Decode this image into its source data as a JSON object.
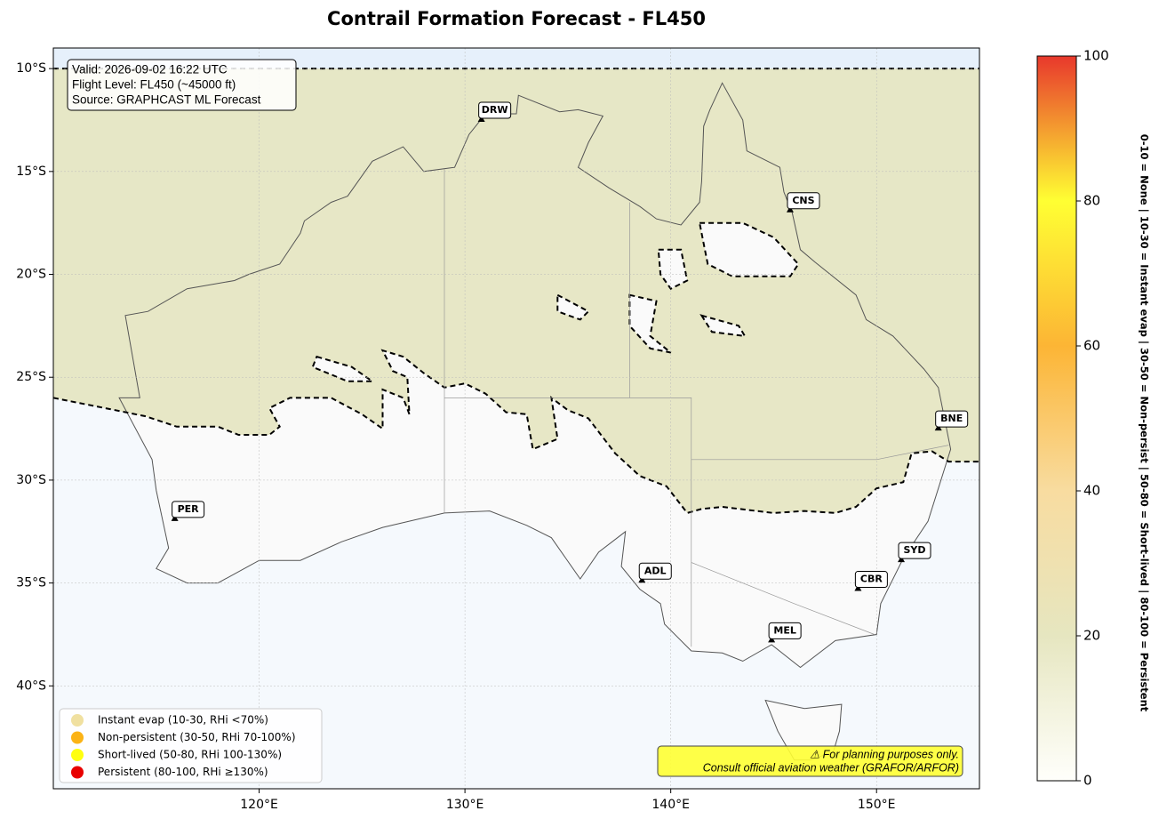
{
  "title": "Contrail Formation Forecast - FL450",
  "map": {
    "xlim": [
      110,
      155
    ],
    "ylim": [
      -45,
      -9
    ],
    "xticks": [
      {
        "value": 120,
        "label": "120°E"
      },
      {
        "value": 130,
        "label": "130°E"
      },
      {
        "value": 140,
        "label": "140°E"
      },
      {
        "value": 150,
        "label": "150°E"
      }
    ],
    "yticks": [
      {
        "value": -10,
        "label": "10°S"
      },
      {
        "value": -15,
        "label": "15°S"
      },
      {
        "value": -20,
        "label": "20°S"
      },
      {
        "value": -25,
        "label": "25°S"
      },
      {
        "value": -30,
        "label": "30°S"
      },
      {
        "value": -35,
        "label": "35°S"
      },
      {
        "value": -40,
        "label": "40°S"
      }
    ],
    "grid": true
  },
  "info_box": [
    "Valid: 2026-09-02 16:22 UTC",
    "Flight Level: FL450 (~45000 ft)",
    "Source: GRAPHCAST ML Forecast"
  ],
  "cities": [
    {
      "code": "DRW",
      "lon": 130.8,
      "lat": -12.5
    },
    {
      "code": "CNS",
      "lon": 145.8,
      "lat": -16.9
    },
    {
      "code": "BNE",
      "lon": 153.0,
      "lat": -27.5
    },
    {
      "code": "PER",
      "lon": 115.9,
      "lat": -31.9
    },
    {
      "code": "ADL",
      "lon": 138.6,
      "lat": -34.9
    },
    {
      "code": "SYD",
      "lon": 151.2,
      "lat": -33.9
    },
    {
      "code": "CBR",
      "lon": 149.1,
      "lat": -35.3
    },
    {
      "code": "MEL",
      "lon": 144.9,
      "lat": -37.8
    }
  ],
  "legend": [
    {
      "label": "Instant evap (10-30, RHi <70%)",
      "color": "#f0e0a0"
    },
    {
      "label": "Non-persistent (30-50, RHi 70-100%)",
      "color": "#fbb316"
    },
    {
      "label": "Short-lived (50-80, RHi 100-130%)",
      "color": "#ffff10"
    },
    {
      "label": "Persistent (80-100, RHi ≥130%)",
      "color": "#e80000"
    }
  ],
  "disclaimer": [
    "⚠ For planning purposes only.",
    "Consult official aviation weather (GRAFOR/ARFOR)"
  ],
  "colorbar": {
    "lim": [
      0,
      100
    ],
    "ticks": [
      0,
      20,
      40,
      60,
      80,
      100
    ],
    "label": "0-10 = None  |  10-30 = Instant evap  |  30-50 = Non-persist  |  50-80 = Short-lived  |  80-100 = Persistent",
    "colors": [
      "#fffffb",
      "#e6e6c0",
      "#f8dca0",
      "#fcb535",
      "#ffff33",
      "#e8382c"
    ]
  }
}
